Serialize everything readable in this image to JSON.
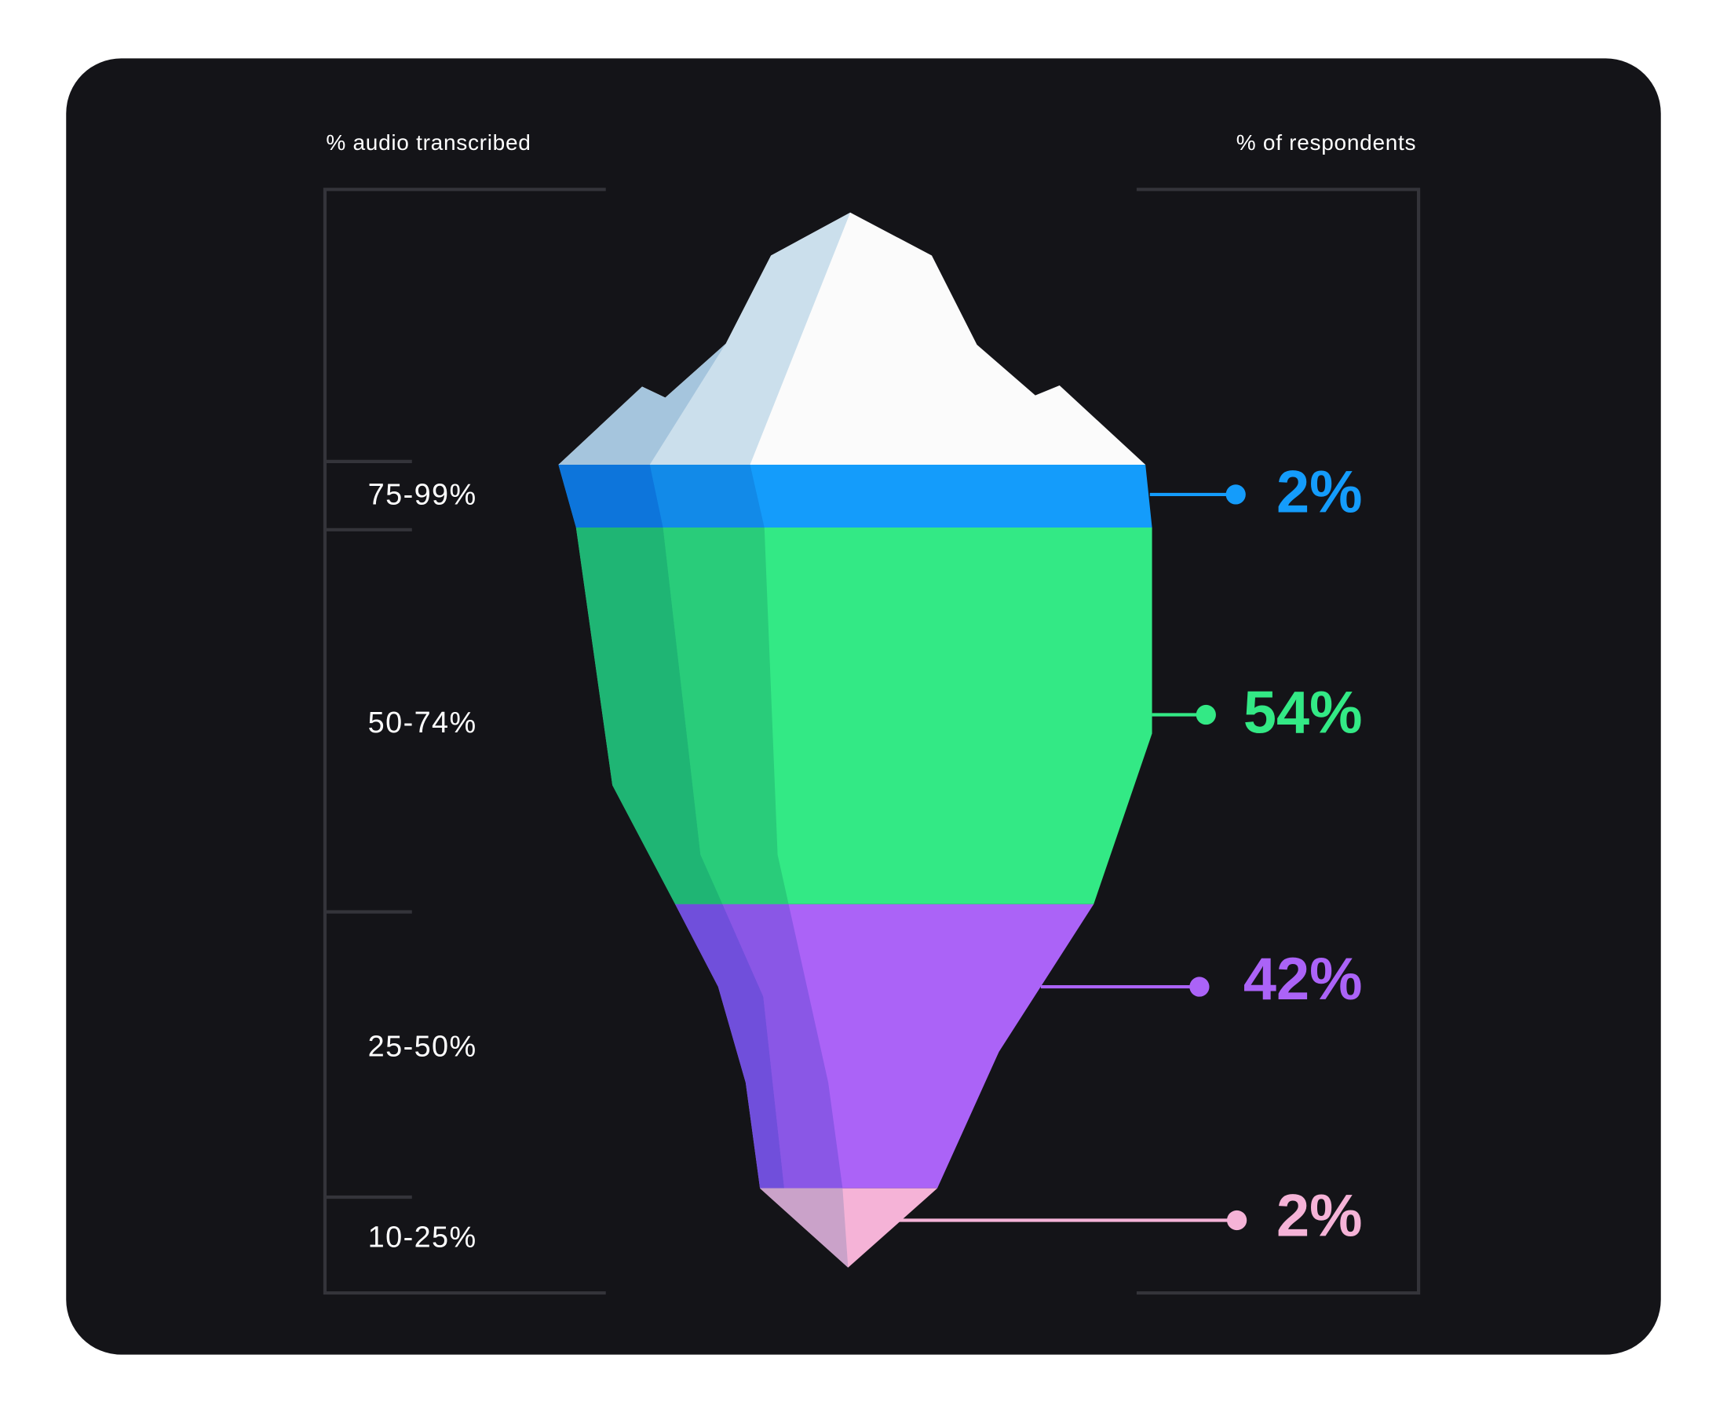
{
  "header": {
    "left_label": "% audio transcribed",
    "right_label": "% of respondents"
  },
  "segments": [
    {
      "range": "75-99%",
      "value": "2%"
    },
    {
      "range": "50-74%",
      "value": "54%"
    },
    {
      "range": "25-50%",
      "value": "42%"
    },
    {
      "range": "10-25%",
      "value": "2%"
    }
  ]
}
